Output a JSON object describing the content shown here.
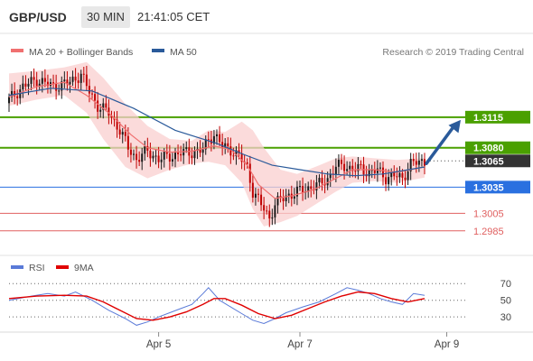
{
  "header": {
    "symbol": "GBP/USD",
    "interval": "30 MIN",
    "time": "21:41:05 CET"
  },
  "legend": {
    "ma20_label": "MA 20 + Bollinger Bands",
    "ma50_label": "MA 50",
    "copyright": "Research © 2019 Trading Central"
  },
  "colors": {
    "up": "#1a1a1a",
    "down": "#c00000",
    "ma20": "#f07070",
    "ma50": "#2a5a9a",
    "bollinger": "#f9cfcf",
    "resistance": "#4aa000",
    "pivot": "#2a70e0",
    "support": "#e06060",
    "current": "#333333",
    "rsi": "#5a7ad8",
    "rsi_ma": "#e00000",
    "arrow": "#2a5a9a"
  },
  "chart_data": [
    {
      "type": "candlestick",
      "ylim": [
        1.296,
        1.3185
      ],
      "x_ticks": [
        "Apr 5",
        "Apr 7",
        "Apr 9"
      ],
      "levels": [
        {
          "value": "1.3115",
          "kind": "resistance"
        },
        {
          "value": "1.3080",
          "kind": "resistance"
        },
        {
          "value": "1.3065",
          "kind": "current"
        },
        {
          "value": "1.3035",
          "kind": "pivot"
        },
        {
          "value": "1.3005",
          "kind": "support"
        },
        {
          "value": "1.2985",
          "kind": "support"
        }
      ],
      "close_points": [
        [
          0,
          1.3135
        ],
        [
          5,
          1.315
        ],
        [
          10,
          1.3158
        ],
        [
          16,
          1.315
        ],
        [
          22,
          1.3155
        ],
        [
          26,
          1.3164
        ],
        [
          28,
          1.315
        ],
        [
          32,
          1.3128
        ],
        [
          36,
          1.312
        ],
        [
          40,
          1.31
        ],
        [
          43,
          1.308
        ],
        [
          46,
          1.3067
        ],
        [
          50,
          1.3076
        ],
        [
          54,
          1.3067
        ],
        [
          58,
          1.307
        ],
        [
          62,
          1.3074
        ],
        [
          66,
          1.3075
        ],
        [
          70,
          1.3077
        ],
        [
          72,
          1.309
        ],
        [
          74,
          1.3095
        ],
        [
          77,
          1.3082
        ],
        [
          80,
          1.3078
        ],
        [
          83,
          1.307
        ],
        [
          86,
          1.3058
        ],
        [
          88,
          1.303
        ],
        [
          90,
          1.302
        ],
        [
          92,
          1.301
        ],
        [
          94,
          1.3
        ],
        [
          96,
          1.3015
        ],
        [
          98,
          1.302
        ],
        [
          100,
          1.3025
        ],
        [
          103,
          1.3028
        ],
        [
          106,
          1.3032
        ],
        [
          109,
          1.3035
        ],
        [
          112,
          1.3038
        ],
        [
          115,
          1.3045
        ],
        [
          118,
          1.3058
        ],
        [
          121,
          1.306
        ],
        [
          124,
          1.3055
        ],
        [
          127,
          1.3056
        ],
        [
          130,
          1.3052
        ],
        [
          133,
          1.3054
        ],
        [
          136,
          1.3046
        ],
        [
          139,
          1.3048
        ],
        [
          142,
          1.3045
        ],
        [
          145,
          1.3062
        ],
        [
          148,
          1.3063
        ],
        [
          150,
          1.3065
        ]
      ],
      "ma20_points": [
        [
          0,
          1.3138
        ],
        [
          10,
          1.315
        ],
        [
          20,
          1.3155
        ],
        [
          28,
          1.314
        ],
        [
          36,
          1.312
        ],
        [
          44,
          1.3095
        ],
        [
          50,
          1.308
        ],
        [
          58,
          1.3075
        ],
        [
          66,
          1.3076
        ],
        [
          74,
          1.3082
        ],
        [
          80,
          1.3078
        ],
        [
          86,
          1.306
        ],
        [
          90,
          1.3038
        ],
        [
          96,
          1.3022
        ],
        [
          102,
          1.3025
        ],
        [
          110,
          1.3032
        ],
        [
          118,
          1.3045
        ],
        [
          124,
          1.3055
        ],
        [
          132,
          1.3055
        ],
        [
          140,
          1.3052
        ],
        [
          150,
          1.3058
        ]
      ],
      "ma50_points": [
        [
          0,
          1.314
        ],
        [
          15,
          1.3148
        ],
        [
          30,
          1.3145
        ],
        [
          45,
          1.3125
        ],
        [
          60,
          1.31
        ],
        [
          75,
          1.3085
        ],
        [
          85,
          1.3072
        ],
        [
          95,
          1.306
        ],
        [
          105,
          1.3055
        ],
        [
          115,
          1.305
        ],
        [
          125,
          1.3048
        ],
        [
          135,
          1.305
        ],
        [
          150,
          1.3058
        ]
      ],
      "bollinger_upper": [
        [
          0,
          1.3165
        ],
        [
          10,
          1.3168
        ],
        [
          20,
          1.3172
        ],
        [
          28,
          1.3178
        ],
        [
          34,
          1.316
        ],
        [
          42,
          1.313
        ],
        [
          50,
          1.3105
        ],
        [
          58,
          1.309
        ],
        [
          66,
          1.3088
        ],
        [
          72,
          1.31
        ],
        [
          78,
          1.3098
        ],
        [
          84,
          1.311
        ],
        [
          88,
          1.31
        ],
        [
          92,
          1.308
        ],
        [
          98,
          1.3055
        ],
        [
          104,
          1.305
        ],
        [
          112,
          1.306
        ],
        [
          118,
          1.3068
        ],
        [
          124,
          1.307
        ],
        [
          132,
          1.3068
        ],
        [
          140,
          1.3066
        ],
        [
          150,
          1.3068
        ]
      ],
      "bollinger_lower": [
        [
          0,
          1.3128
        ],
        [
          10,
          1.3135
        ],
        [
          20,
          1.314
        ],
        [
          28,
          1.312
        ],
        [
          34,
          1.309
        ],
        [
          42,
          1.3058
        ],
        [
          50,
          1.3045
        ],
        [
          58,
          1.3055
        ],
        [
          66,
          1.3062
        ],
        [
          72,
          1.3064
        ],
        [
          78,
          1.306
        ],
        [
          84,
          1.304
        ],
        [
          88,
          1.301
        ],
        [
          92,
          1.299
        ],
        [
          98,
          1.2995
        ],
        [
          104,
          1.3002
        ],
        [
          112,
          1.3018
        ],
        [
          118,
          1.303
        ],
        [
          124,
          1.304
        ],
        [
          132,
          1.3042
        ],
        [
          140,
          1.304
        ],
        [
          150,
          1.3046
        ]
      ]
    },
    {
      "type": "line",
      "legend": [
        "RSI",
        "9MA"
      ],
      "ylim": [
        15,
        80
      ],
      "y_ticks": [
        "70",
        "50",
        "30"
      ],
      "series": [
        {
          "name": "RSI",
          "points": [
            [
              0,
              50
            ],
            [
              8,
              55
            ],
            [
              14,
              58
            ],
            [
              20,
              55
            ],
            [
              24,
              60
            ],
            [
              30,
              50
            ],
            [
              36,
              38
            ],
            [
              42,
              28
            ],
            [
              46,
              20
            ],
            [
              50,
              24
            ],
            [
              54,
              30
            ],
            [
              58,
              35
            ],
            [
              62,
              40
            ],
            [
              66,
              45
            ],
            [
              70,
              58
            ],
            [
              72,
              65
            ],
            [
              76,
              50
            ],
            [
              80,
              42
            ],
            [
              84,
              34
            ],
            [
              88,
              26
            ],
            [
              92,
              22
            ],
            [
              96,
              28
            ],
            [
              100,
              35
            ],
            [
              106,
              42
            ],
            [
              112,
              48
            ],
            [
              118,
              58
            ],
            [
              122,
              65
            ],
            [
              126,
              62
            ],
            [
              130,
              58
            ],
            [
              134,
              52
            ],
            [
              138,
              48
            ],
            [
              142,
              45
            ],
            [
              146,
              58
            ],
            [
              150,
              56
            ]
          ]
        },
        {
          "name": "9MA",
          "points": [
            [
              0,
              52
            ],
            [
              10,
              55
            ],
            [
              20,
              56
            ],
            [
              28,
              55
            ],
            [
              34,
              48
            ],
            [
              40,
              38
            ],
            [
              46,
              28
            ],
            [
              52,
              26
            ],
            [
              58,
              30
            ],
            [
              64,
              36
            ],
            [
              70,
              45
            ],
            [
              74,
              52
            ],
            [
              78,
              52
            ],
            [
              84,
              44
            ],
            [
              90,
              34
            ],
            [
              96,
              28
            ],
            [
              102,
              32
            ],
            [
              108,
              40
            ],
            [
              114,
              48
            ],
            [
              120,
              55
            ],
            [
              126,
              60
            ],
            [
              132,
              58
            ],
            [
              138,
              52
            ],
            [
              144,
              48
            ],
            [
              150,
              52
            ]
          ]
        }
      ]
    }
  ]
}
